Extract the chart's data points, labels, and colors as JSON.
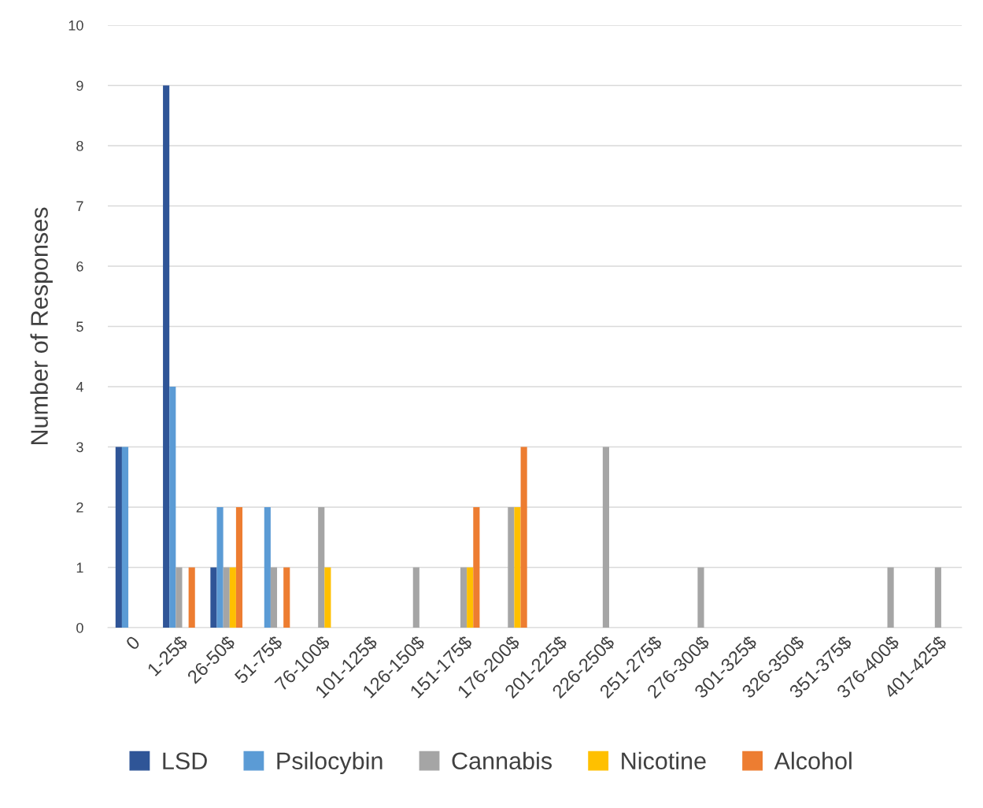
{
  "chart_data": {
    "type": "bar",
    "ylabel": "Number of Responses",
    "categories": [
      "0",
      "1-25$",
      "26-50$",
      "51-75$",
      "76-100$",
      "101-125$",
      "126-150$",
      "151-175$",
      "176-200$",
      "201-225$",
      "226-250$",
      "251-275$",
      "276-300$",
      "301-325$",
      "326-350$",
      "351-375$",
      "376-400$",
      "401-425$"
    ],
    "series": [
      {
        "name": "LSD",
        "color": "#2f5597",
        "values": [
          3,
          9,
          1,
          0,
          0,
          0,
          0,
          0,
          0,
          0,
          0,
          0,
          0,
          0,
          0,
          0,
          0,
          0
        ]
      },
      {
        "name": "Psilocybin",
        "color": "#5b9bd5",
        "values": [
          3,
          4,
          2,
          2,
          0,
          0,
          0,
          0,
          0,
          0,
          0,
          0,
          0,
          0,
          0,
          0,
          0,
          0
        ]
      },
      {
        "name": "Cannabis",
        "color": "#a5a5a5",
        "values": [
          0,
          1,
          1,
          1,
          2,
          0,
          1,
          1,
          2,
          0,
          3,
          0,
          1,
          0,
          0,
          0,
          1,
          1
        ]
      },
      {
        "name": "Nicotine",
        "color": "#ffc000",
        "values": [
          0,
          0,
          1,
          0,
          1,
          0,
          0,
          1,
          2,
          0,
          0,
          0,
          0,
          0,
          0,
          0,
          0,
          0
        ]
      },
      {
        "name": "Alcohol",
        "color": "#ed7d31",
        "values": [
          0,
          1,
          2,
          1,
          0,
          0,
          0,
          2,
          3,
          0,
          0,
          0,
          0,
          0,
          0,
          0,
          0,
          0
        ]
      }
    ],
    "ylim": [
      0,
      10
    ],
    "yticks": [
      0,
      1,
      2,
      3,
      4,
      5,
      6,
      7,
      8,
      9,
      10
    ],
    "grid": "y",
    "legend": "bottom"
  }
}
